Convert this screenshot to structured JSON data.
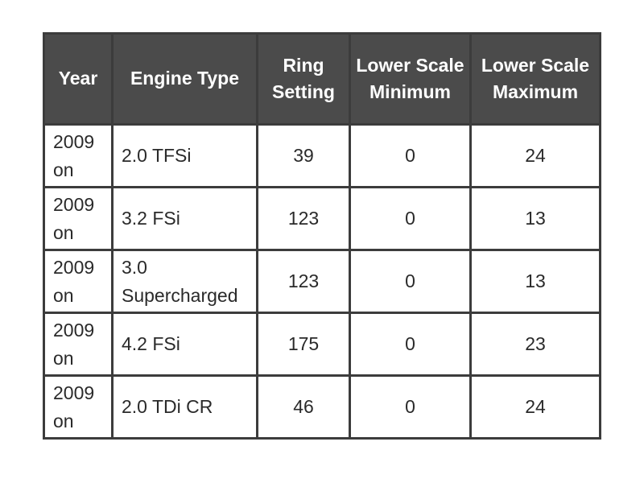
{
  "table": {
    "headers": [
      "Year",
      "Engine Type",
      "Ring Setting",
      "Lower Scale Minimum",
      "Lower Scale Maximum"
    ],
    "rows": [
      [
        "2009 on",
        "2.0 TFSi",
        39,
        0,
        24
      ],
      [
        "2009 on",
        "3.2 FSi",
        123,
        0,
        13
      ],
      [
        "2009 on",
        "3.0 Supercharged",
        123,
        0,
        13
      ],
      [
        "2009 on",
        "4.2 FSi",
        175,
        0,
        23
      ],
      [
        "2009 on",
        "2.0 TDi CR",
        46,
        0,
        24
      ]
    ]
  }
}
